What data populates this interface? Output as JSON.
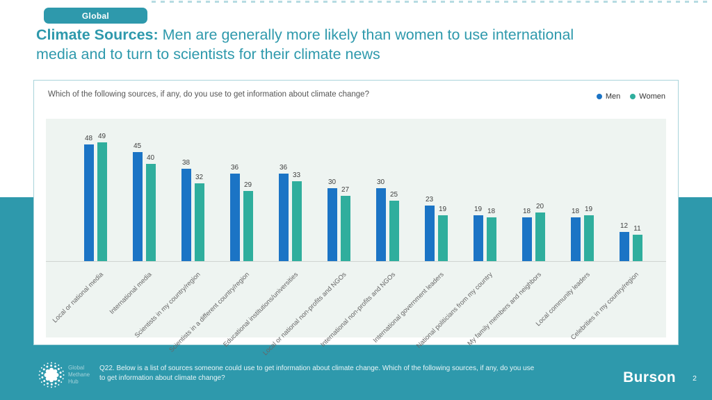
{
  "badge": {
    "label": "Global"
  },
  "title": {
    "bold": "Climate Sources:",
    "rest": " Men are generally more likely than women to use international media and to turn to scientists for their climate news"
  },
  "chart_card": {
    "question": "Which of the following sources, if any, do you use to get information about climate change?"
  },
  "chart_data": {
    "type": "bar",
    "title": "",
    "xlabel": "",
    "ylabel": "",
    "ylim": [
      0,
      55
    ],
    "grid": false,
    "legend_position": "top-right",
    "value_labels": true,
    "categories": [
      "Local or national media",
      "International media",
      "Scientists in my country/region",
      "Scientists in a different country/region",
      "Educational institutions/universities",
      "Local or national non-profits and NGOs",
      "International non-profits and NGOs",
      "International government leaders",
      "National politicians from my country",
      "My family members and neighbors",
      "Local community leaders",
      "Celebrities in my country/region"
    ],
    "series": [
      {
        "name": "Men",
        "color": "#1B74C5",
        "values": [
          48,
          45,
          38,
          36,
          36,
          30,
          30,
          23,
          19,
          18,
          18,
          12
        ]
      },
      {
        "name": "Women",
        "color": "#2FAE9D",
        "values": [
          49,
          40,
          32,
          29,
          33,
          27,
          25,
          19,
          18,
          20,
          19,
          11
        ]
      }
    ]
  },
  "footer": {
    "logo_lines": [
      "Global",
      "Methane",
      "Hub"
    ],
    "note_line1": "Q22. Below is a list of sources someone could use to get information about climate change. Which of the following sources, if any, do you use",
    "note_line2": "to get information about climate change?",
    "brand": "Burson",
    "page_number": "2"
  },
  "colors": {
    "brand_teal": "#2E99AC",
    "men": "#1B74C5",
    "women": "#2FAE9D",
    "plot_bg": "#EEF4F1",
    "title_text": "#2E99AC"
  }
}
